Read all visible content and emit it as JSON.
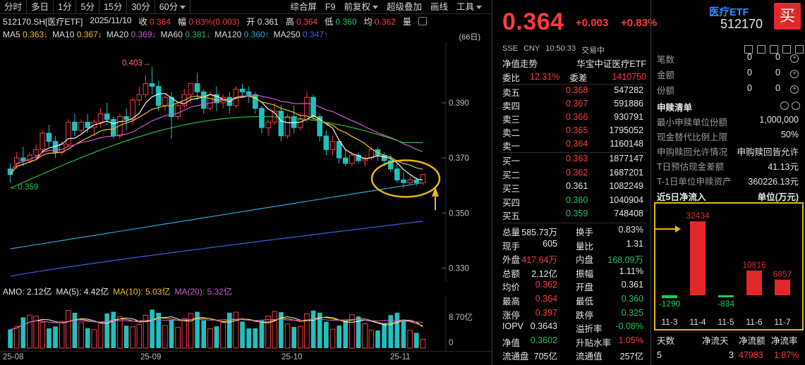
{
  "toolbar": {
    "periods": [
      "分时",
      "多日",
      "1分",
      "5分",
      "15分",
      "30分",
      "60分"
    ],
    "tools": [
      "综合屏",
      "F9",
      "前复权",
      "超级叠加",
      "画线",
      "工具"
    ]
  },
  "quote": {
    "symbol": "512170.SH[医疗ETF]",
    "date": "2025/11/10",
    "close_label": "收",
    "close": "0.364",
    "range_label": "幅",
    "range": "0.83%(0.003)",
    "open_label": "开",
    "open": "0.361",
    "high_label": "高",
    "high": "0.364",
    "low_label": "低",
    "low": "0.360",
    "avg_label": "均",
    "avg": "0.362",
    "vol_label": "量"
  },
  "ma": {
    "ma5_label": "MA5",
    "ma5": "0.363↓",
    "ma10_label": "MA10",
    "ma10": "0.367↓",
    "ma20_label": "MA20",
    "ma20": "0.369↓",
    "ma60_label": "MA60",
    "ma60": "0.381↓",
    "ma120_label": "MA120",
    "ma120": "0.360↑",
    "ma250_label": "MA250",
    "ma250": "0.347↑",
    "days": "(66日)"
  },
  "chart_data": {
    "type": "candlestick",
    "ylim": [
      0.325,
      0.412
    ],
    "y_ticks": [
      "0.390",
      "0.370",
      "0.350",
      "0.330"
    ],
    "high_annotation": "0.403→",
    "low_annotation": "←0.359",
    "x_ticks": [
      "25-08",
      "25-09",
      "25-10",
      "25-11"
    ],
    "candles": [
      [
        0.366,
        0.368,
        0.364,
        0.361
      ],
      [
        0.368,
        0.372,
        0.37,
        0.366
      ],
      [
        0.37,
        0.374,
        0.369,
        0.367
      ],
      [
        0.369,
        0.372,
        0.371,
        0.368
      ],
      [
        0.371,
        0.375,
        0.373,
        0.369
      ],
      [
        0.373,
        0.38,
        0.379,
        0.372
      ],
      [
        0.379,
        0.382,
        0.376,
        0.374
      ],
      [
        0.376,
        0.378,
        0.372,
        0.37
      ],
      [
        0.372,
        0.376,
        0.375,
        0.371
      ],
      [
        0.375,
        0.384,
        0.383,
        0.374
      ],
      [
        0.383,
        0.386,
        0.38,
        0.378
      ],
      [
        0.38,
        0.384,
        0.383,
        0.379
      ],
      [
        0.383,
        0.386,
        0.381,
        0.379
      ],
      [
        0.381,
        0.384,
        0.383,
        0.378
      ],
      [
        0.383,
        0.388,
        0.386,
        0.381
      ],
      [
        0.386,
        0.39,
        0.384,
        0.382
      ],
      [
        0.384,
        0.385,
        0.378,
        0.377
      ],
      [
        0.378,
        0.386,
        0.385,
        0.377
      ],
      [
        0.385,
        0.388,
        0.384,
        0.38
      ],
      [
        0.384,
        0.392,
        0.391,
        0.382
      ],
      [
        0.391,
        0.396,
        0.393,
        0.389
      ],
      [
        0.393,
        0.4,
        0.397,
        0.392
      ],
      [
        0.397,
        0.403,
        0.396,
        0.393
      ],
      [
        0.396,
        0.398,
        0.389,
        0.387
      ],
      [
        0.389,
        0.393,
        0.392,
        0.387
      ],
      [
        0.392,
        0.394,
        0.385,
        0.377
      ],
      [
        0.385,
        0.39,
        0.389,
        0.384
      ],
      [
        0.389,
        0.395,
        0.393,
        0.388
      ],
      [
        0.393,
        0.396,
        0.397,
        0.39
      ],
      [
        0.397,
        0.401,
        0.394,
        0.391
      ],
      [
        0.394,
        0.395,
        0.388,
        0.386
      ],
      [
        0.388,
        0.394,
        0.393,
        0.387
      ],
      [
        0.393,
        0.396,
        0.39,
        0.387
      ],
      [
        0.39,
        0.393,
        0.392,
        0.388
      ],
      [
        0.392,
        0.394,
        0.389,
        0.386
      ],
      [
        0.389,
        0.396,
        0.395,
        0.388
      ],
      [
        0.395,
        0.397,
        0.394,
        0.392
      ],
      [
        0.394,
        0.396,
        0.393,
        0.39
      ],
      [
        0.393,
        0.394,
        0.388,
        0.386
      ],
      [
        0.388,
        0.389,
        0.381,
        0.379
      ],
      [
        0.381,
        0.384,
        0.383,
        0.378
      ],
      [
        0.383,
        0.39,
        0.387,
        0.382
      ],
      [
        0.387,
        0.389,
        0.378,
        0.376
      ],
      [
        0.378,
        0.386,
        0.385,
        0.377
      ],
      [
        0.385,
        0.389,
        0.381,
        0.379
      ],
      [
        0.381,
        0.386,
        0.384,
        0.38
      ],
      [
        0.384,
        0.394,
        0.392,
        0.383
      ],
      [
        0.392,
        0.393,
        0.385,
        0.384
      ],
      [
        0.385,
        0.386,
        0.378,
        0.376
      ],
      [
        0.378,
        0.38,
        0.373,
        0.371
      ],
      [
        0.373,
        0.378,
        0.376,
        0.371
      ],
      [
        0.376,
        0.377,
        0.37,
        0.368
      ],
      [
        0.37,
        0.373,
        0.368,
        0.367
      ],
      [
        0.368,
        0.372,
        0.371,
        0.367
      ],
      [
        0.371,
        0.372,
        0.369,
        0.368
      ],
      [
        0.369,
        0.371,
        0.37,
        0.367
      ],
      [
        0.37,
        0.374,
        0.373,
        0.369
      ],
      [
        0.373,
        0.374,
        0.371,
        0.369
      ],
      [
        0.371,
        0.372,
        0.369,
        0.367
      ],
      [
        0.369,
        0.371,
        0.366,
        0.365
      ],
      [
        0.366,
        0.368,
        0.362,
        0.361
      ],
      [
        0.362,
        0.365,
        0.361,
        0.359
      ],
      [
        0.361,
        0.363,
        0.362,
        0.36
      ],
      [
        0.362,
        0.363,
        0.361,
        0.36
      ],
      [
        0.361,
        0.364,
        0.364,
        0.36
      ]
    ],
    "volume_ylabel_max": "8.70亿",
    "volume_zero": "0"
  },
  "amo": {
    "amo_label": "AMO:",
    "amo": "2.12亿",
    "ma5_label": "MA(5):",
    "ma5": "4.42亿",
    "ma10_label": "MA(10):",
    "ma10": "5.03亿",
    "ma20_label": "MA(20):",
    "ma20": "5.32亿"
  },
  "header": {
    "price": "0.364",
    "change": "+0.003",
    "change_pct": "+0.83%",
    "exchange": "SSE",
    "currency": "CNY",
    "time": "10:50:33",
    "status": "交易中",
    "etf_name": "医疗ETF",
    "code": "512170",
    "buy_label": "买"
  },
  "nav_line": {
    "label": "净值走势",
    "value": "华宝中证医疗ETF"
  },
  "ratio": {
    "wei_bi_label": "委比",
    "wei_bi": "12.31%",
    "wei_cha_label": "委差",
    "wei_cha": "1410750"
  },
  "asks": [
    {
      "label": "卖五",
      "price": "0.368",
      "vol": "547282"
    },
    {
      "label": "卖四",
      "price": "0.367",
      "vol": "591886"
    },
    {
      "label": "卖三",
      "price": "0.366",
      "vol": "930791"
    },
    {
      "label": "卖二",
      "price": "0.365",
      "vol": "1795052"
    },
    {
      "label": "卖一",
      "price": "0.364",
      "vol": "1160148"
    }
  ],
  "bids": [
    {
      "label": "买一",
      "price": "0.363",
      "vol": "1877147"
    },
    {
      "label": "买二",
      "price": "0.362",
      "vol": "1687201"
    },
    {
      "label": "买三",
      "price": "0.361",
      "vol": "1082249"
    },
    {
      "label": "买四",
      "price": "0.360",
      "vol": "1040904"
    },
    {
      "label": "买五",
      "price": "0.359",
      "vol": "748408"
    }
  ],
  "stats": [
    {
      "k1": "总量",
      "v1": "585.73万",
      "k2": "换手",
      "v2": "0.83%",
      "c1": "white",
      "c2": "white"
    },
    {
      "k1": "现手",
      "v1": "605",
      "k2": "量比",
      "v2": "1.31",
      "c1": "white",
      "c2": "white"
    },
    {
      "k1": "外盘",
      "v1": "417.64万",
      "k2": "内盘",
      "v2": "168.09万",
      "c1": "red",
      "c2": "green"
    },
    {
      "k1": "总额",
      "v1": "2.12亿",
      "k2": "振幅",
      "v2": "1.11%",
      "c1": "white",
      "c2": "white"
    },
    {
      "k1": "均价",
      "v1": "0.362",
      "k2": "开盘",
      "v2": "0.361",
      "c1": "red",
      "c2": "white"
    },
    {
      "k1": "最高",
      "v1": "0.364",
      "k2": "最低",
      "v2": "0.360",
      "c1": "red",
      "c2": "green"
    },
    {
      "k1": "涨停",
      "v1": "0.397",
      "k2": "跌停",
      "v2": "0.325",
      "c1": "red",
      "c2": "green"
    },
    {
      "k1": "IOPV",
      "v1": "0.3643",
      "k2": "溢折率",
      "v2": "-0.08%",
      "c1": "white",
      "c2": "green"
    },
    {
      "k1": "净值",
      "v1": "0.3602",
      "k2": "升贴水率",
      "v2": "1.05%",
      "c1": "green",
      "c2": "red"
    },
    {
      "k1": "流通盘",
      "v1": "705亿",
      "k2": "流通值",
      "v2": "257亿",
      "c1": "white",
      "c2": "white"
    }
  ],
  "holdings": [
    {
      "label": "笔数",
      "a": "0",
      "b": "0"
    },
    {
      "label": "金额",
      "a": "0",
      "b": "0"
    },
    {
      "label": "份额",
      "a": "0",
      "b": "0"
    }
  ],
  "subscription": {
    "title": "申赎清单",
    "rows": [
      {
        "k": "最小申赎单位份额",
        "v": "1,000,000"
      },
      {
        "k": "现金替代比例上限",
        "v": "50%"
      },
      {
        "k": "申购赎回允许情况",
        "v": "申购赎回皆允许"
      },
      {
        "k": "T日预估现金差额",
        "v": "41.13元"
      },
      {
        "k": "T-1日单位申赎资产",
        "v": "360226.13元"
      }
    ]
  },
  "net_inflow": {
    "title": "近5日净流入",
    "unit": "单位(万元)",
    "dates": [
      "11-3",
      "11-4",
      "11-5",
      "11-6",
      "11-7"
    ],
    "values": [
      -1290,
      32434,
      -834,
      10816,
      6857
    ],
    "labels": [
      "-1290",
      "32434",
      "-834",
      "10816",
      "6857"
    ],
    "colors": [
      "#22c55e",
      "#e32828",
      "#22c55e",
      "#e32828",
      "#e32828"
    ]
  },
  "flow_summary": {
    "days_label": "天数",
    "days": "5",
    "net_days_label": "净流天",
    "net_days": "3",
    "net_amount_label": "净流额",
    "net_amount": "47983",
    "net_rate_label": "净流率",
    "net_rate": "1.87%"
  },
  "colors": {
    "up": "#ff3b3b",
    "down": "#22c55e",
    "highlight": "#e8b71c",
    "ma5": "#f5f5f5",
    "ma10": "#f0c020",
    "ma20": "#d05ad0",
    "ma60": "#2fb844",
    "ma120": "#2aa6d6",
    "ma250": "#3a5ef0"
  }
}
